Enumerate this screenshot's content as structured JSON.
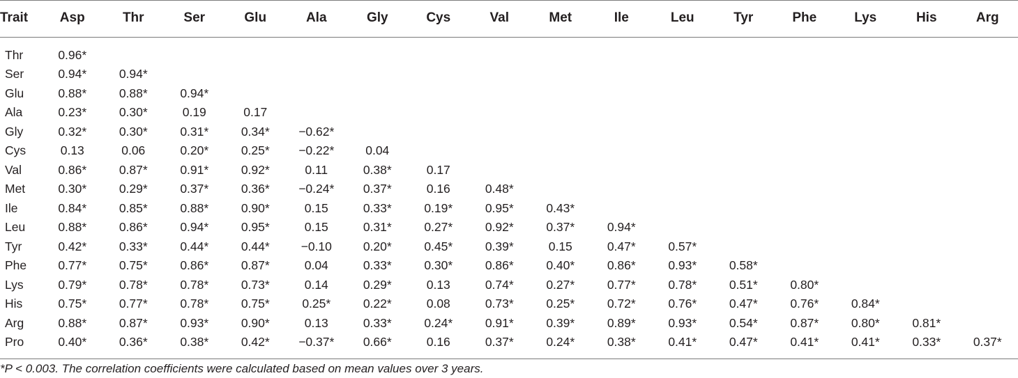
{
  "table": {
    "header": [
      "Trait",
      "Asp",
      "Thr",
      "Ser",
      "Glu",
      "Ala",
      "Gly",
      "Cys",
      "Val",
      "Met",
      "Ile",
      "Leu",
      "Tyr",
      "Phe",
      "Lys",
      "His",
      "Arg"
    ],
    "rows": [
      [
        "Thr",
        "0.96*",
        "",
        "",
        "",
        "",
        "",
        "",
        "",
        "",
        "",
        "",
        "",
        "",
        "",
        "",
        ""
      ],
      [
        "Ser",
        "0.94*",
        "0.94*",
        "",
        "",
        "",
        "",
        "",
        "",
        "",
        "",
        "",
        "",
        "",
        "",
        "",
        ""
      ],
      [
        "Glu",
        "0.88*",
        "0.88*",
        "0.94*",
        "",
        "",
        "",
        "",
        "",
        "",
        "",
        "",
        "",
        "",
        "",
        "",
        ""
      ],
      [
        "Ala",
        "0.23*",
        "0.30*",
        "0.19",
        "0.17",
        "",
        "",
        "",
        "",
        "",
        "",
        "",
        "",
        "",
        "",
        "",
        ""
      ],
      [
        "Gly",
        "0.32*",
        "0.30*",
        "0.31*",
        "0.34*",
        "−0.62*",
        "",
        "",
        "",
        "",
        "",
        "",
        "",
        "",
        "",
        "",
        ""
      ],
      [
        "Cys",
        "0.13",
        "0.06",
        "0.20*",
        "0.25*",
        "−0.22*",
        "0.04",
        "",
        "",
        "",
        "",
        "",
        "",
        "",
        "",
        "",
        ""
      ],
      [
        "Val",
        "0.86*",
        "0.87*",
        "0.91*",
        "0.92*",
        "0.11",
        "0.38*",
        "0.17",
        "",
        "",
        "",
        "",
        "",
        "",
        "",
        "",
        ""
      ],
      [
        "Met",
        "0.30*",
        "0.29*",
        "0.37*",
        "0.36*",
        "−0.24*",
        "0.37*",
        "0.16",
        "0.48*",
        "",
        "",
        "",
        "",
        "",
        "",
        "",
        ""
      ],
      [
        "Ile",
        "0.84*",
        "0.85*",
        "0.88*",
        "0.90*",
        "0.15",
        "0.33*",
        "0.19*",
        "0.95*",
        "0.43*",
        "",
        "",
        "",
        "",
        "",
        "",
        ""
      ],
      [
        "Leu",
        "0.88*",
        "0.86*",
        "0.94*",
        "0.95*",
        "0.15",
        "0.31*",
        "0.27*",
        "0.92*",
        "0.37*",
        "0.94*",
        "",
        "",
        "",
        "",
        "",
        ""
      ],
      [
        "Tyr",
        "0.42*",
        "0.33*",
        "0.44*",
        "0.44*",
        "−0.10",
        "0.20*",
        "0.45*",
        "0.39*",
        "0.15",
        "0.47*",
        "0.57*",
        "",
        "",
        "",
        "",
        ""
      ],
      [
        "Phe",
        "0.77*",
        "0.75*",
        "0.86*",
        "0.87*",
        "0.04",
        "0.33*",
        "0.30*",
        "0.86*",
        "0.40*",
        "0.86*",
        "0.93*",
        "0.58*",
        "",
        "",
        "",
        ""
      ],
      [
        "Lys",
        "0.79*",
        "0.78*",
        "0.78*",
        "0.73*",
        "0.14",
        "0.29*",
        "0.13",
        "0.74*",
        "0.27*",
        "0.77*",
        "0.78*",
        "0.51*",
        "0.80*",
        "",
        "",
        ""
      ],
      [
        "His",
        "0.75*",
        "0.77*",
        "0.78*",
        "0.75*",
        "0.25*",
        "0.22*",
        "0.08",
        "0.73*",
        "0.25*",
        "0.72*",
        "0.76*",
        "0.47*",
        "0.76*",
        "0.84*",
        "",
        ""
      ],
      [
        "Arg",
        "0.88*",
        "0.87*",
        "0.93*",
        "0.90*",
        "0.13",
        "0.33*",
        "0.24*",
        "0.91*",
        "0.39*",
        "0.89*",
        "0.93*",
        "0.54*",
        "0.87*",
        "0.80*",
        "0.81*",
        ""
      ],
      [
        "Pro",
        "0.40*",
        "0.36*",
        "0.38*",
        "0.42*",
        "−0.37*",
        "0.66*",
        "0.16",
        "0.37*",
        "0.24*",
        "0.38*",
        "0.41*",
        "0.47*",
        "0.41*",
        "0.41*",
        "0.33*",
        "0.37*"
      ]
    ]
  },
  "footnote": "*P < 0.003. The correlation coefficients were calculated based on mean values over 3 years."
}
